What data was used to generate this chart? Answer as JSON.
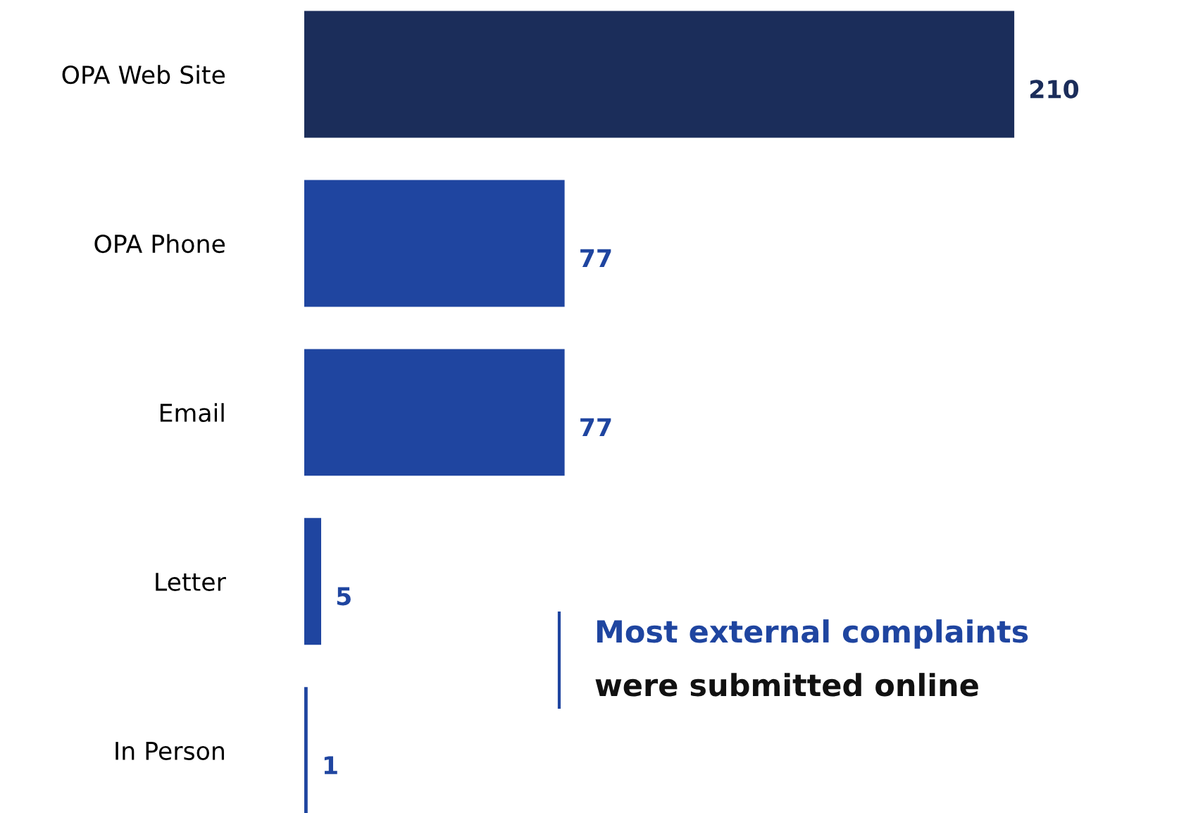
{
  "chart_data": {
    "type": "bar",
    "orientation": "horizontal",
    "categories": [
      "OPA Web Site",
      "OPA Phone",
      "Email",
      "Letter",
      "In Person"
    ],
    "values": [
      210,
      77,
      77,
      5,
      1
    ],
    "colors": [
      "#1b2d5a",
      "#1f45a0",
      "#1f45a0",
      "#1f45a0",
      "#1f45a0"
    ],
    "data_labels": true,
    "grid": false,
    "legend": false,
    "annotations": [
      "Most external complaints",
      "were submitted online"
    ]
  }
}
